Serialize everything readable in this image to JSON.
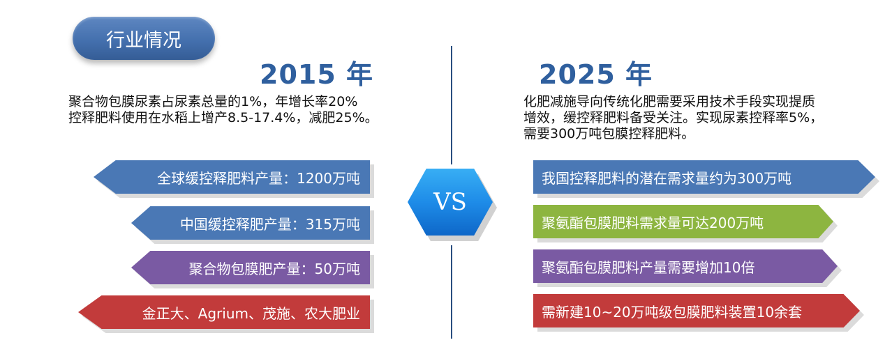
{
  "header": {
    "title": "行业情况"
  },
  "left": {
    "year": "2015 年",
    "lines": [
      "聚合物包膜尿素占尿素总量的1%，年增长率20%",
      "控释肥料使用在水稻上增产8.5-17.4%，减肥25%。"
    ],
    "bars": [
      {
        "label": "全球缓控释肥料产量：1200万吨",
        "color": "#4a78b5"
      },
      {
        "label": "中国缓控释肥产量：315万吨",
        "color": "#4a78b5"
      },
      {
        "label": "聚合物包膜肥产量：50万吨",
        "color": "#7a5aa3"
      },
      {
        "label": "金正大、Agrium、茂施、农大肥业",
        "color": "#c23b3b"
      }
    ]
  },
  "vs": {
    "label": "VS"
  },
  "right": {
    "year": "2025 年",
    "lines": [
      "化肥减施导向传统化肥需要采用技术手段实现提质",
      "增效，缓控释肥料备受关注。实现尿素控释率5%，",
      "需要300万吨包膜控释肥料。"
    ],
    "bars": [
      {
        "label": "我国控释肥料的潜在需求量约为300万吨",
        "color": "#4a78b5"
      },
      {
        "label": "聚氨酯包膜肥料需求量可达200万吨",
        "color": "#8db540"
      },
      {
        "label": "聚氨酯包膜肥料产量需要增加10倍",
        "color": "#7a5aa3"
      },
      {
        "label": "需新建10~20万吨级包膜肥料装置10余套",
        "color": "#c23b3b"
      }
    ]
  }
}
